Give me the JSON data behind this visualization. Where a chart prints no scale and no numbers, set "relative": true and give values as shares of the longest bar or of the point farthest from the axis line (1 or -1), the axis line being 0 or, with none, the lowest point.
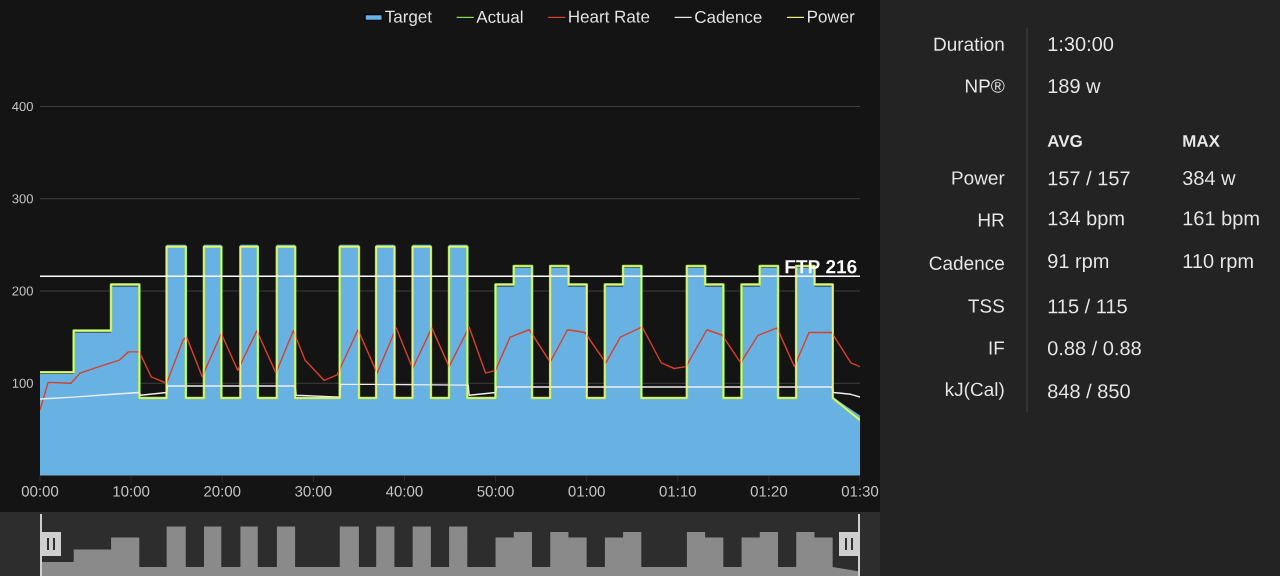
{
  "chart_data": [
    {
      "type": "line",
      "series": [
        {
          "name": "Target",
          "type": "area",
          "color": "#68b2e3",
          "x": [
            0,
            3.7,
            3.7,
            7.8,
            7.8,
            10.9,
            10.9,
            13.9,
            13.9,
            16,
            16,
            18,
            18,
            19.9,
            19.9,
            22,
            22,
            23.9,
            23.9,
            26,
            26,
            28,
            28,
            32.9,
            32.9,
            35,
            35,
            36.9,
            36.9,
            38.9,
            38.9,
            40.9,
            40.9,
            42.9,
            42.9,
            44.9,
            44.9,
            46.9,
            46.9,
            50,
            50,
            52,
            52,
            54,
            54,
            56,
            56,
            58,
            58,
            60,
            60,
            62,
            62,
            64,
            64,
            66,
            66,
            71,
            71,
            73,
            73,
            75,
            75,
            77,
            77,
            79,
            79,
            81,
            81,
            83,
            83,
            85,
            85,
            87,
            87,
            90
          ],
          "values": [
            110,
            110,
            155,
            155,
            205,
            205,
            85,
            85,
            250,
            250,
            85,
            85,
            250,
            250,
            85,
            85,
            250,
            250,
            85,
            85,
            250,
            250,
            85,
            85,
            250,
            250,
            85,
            85,
            250,
            250,
            85,
            85,
            250,
            250,
            85,
            85,
            250,
            250,
            85,
            85,
            205,
            205,
            225,
            225,
            85,
            85,
            225,
            225,
            205,
            205,
            85,
            85,
            205,
            205,
            225,
            225,
            85,
            85,
            225,
            225,
            205,
            205,
            85,
            85,
            205,
            205,
            225,
            225,
            85,
            85,
            225,
            225,
            205,
            205,
            85,
            65
          ]
        },
        {
          "name": "Actual",
          "color": "#8fdc5a",
          "x": [
            0,
            3.7,
            3.7,
            7.8,
            7.8,
            10.9,
            10.9,
            13.9,
            13.9,
            16,
            16,
            18,
            18,
            19.9,
            19.9,
            22,
            22,
            23.9,
            23.9,
            26,
            26,
            28,
            28,
            32.9,
            32.9,
            35,
            35,
            36.9,
            36.9,
            38.9,
            38.9,
            40.9,
            40.9,
            42.9,
            42.9,
            44.9,
            44.9,
            46.9,
            46.9,
            50,
            50,
            52,
            52,
            54,
            54,
            56,
            56,
            58,
            58,
            60,
            60,
            62,
            62,
            64,
            64,
            66,
            66,
            71,
            71,
            73,
            73,
            75,
            75,
            77,
            77,
            79,
            79,
            81,
            81,
            83,
            83,
            85,
            85,
            87,
            87,
            90
          ],
          "values": [
            112,
            112,
            157,
            157,
            207,
            207,
            84,
            84,
            248,
            248,
            84,
            84,
            248,
            248,
            84,
            84,
            248,
            248,
            84,
            84,
            248,
            248,
            84,
            84,
            248,
            248,
            84,
            84,
            248,
            248,
            84,
            84,
            248,
            248,
            84,
            84,
            248,
            248,
            84,
            84,
            207,
            207,
            227,
            227,
            84,
            84,
            227,
            227,
            207,
            207,
            84,
            84,
            207,
            207,
            227,
            227,
            84,
            84,
            227,
            227,
            207,
            207,
            84,
            84,
            207,
            207,
            227,
            227,
            84,
            84,
            227,
            227,
            207,
            207,
            84,
            60
          ]
        },
        {
          "name": "Heart Rate",
          "color": "#d8402c",
          "x": [
            0,
            0.9,
            3.4,
            4.4,
            6.5,
            8.7,
            9.7,
            10.9,
            12.2,
            13.9,
            15.7,
            16.1,
            17.8,
            19.9,
            21.7,
            23.8,
            25.9,
            27.8,
            29.1,
            31.2,
            32.6,
            34.9,
            37.0,
            39.1,
            40.9,
            43.0,
            44.9,
            47.1,
            48.9,
            50.0,
            51.6,
            53.7,
            56.0,
            57.9,
            59.8,
            62.1,
            63.7,
            66.1,
            68.2,
            69.6,
            70.9,
            73.2,
            74.9,
            76.9,
            78.8,
            80.9,
            82.8,
            84.4,
            86.9,
            89.0,
            90
          ],
          "values": [
            71,
            101,
            100,
            111,
            118,
            125,
            134,
            134,
            107,
            100,
            147,
            150,
            107,
            154,
            114,
            157,
            111,
            157,
            125,
            103,
            109,
            158,
            111,
            160,
            116,
            160,
            118,
            161,
            111,
            114,
            150,
            158,
            123,
            158,
            155,
            122,
            150,
            161,
            122,
            116,
            118,
            158,
            152,
            122,
            152,
            160,
            118,
            155,
            155,
            122,
            118
          ]
        },
        {
          "name": "Cadence",
          "color": "#eeeeee",
          "x": [
            0,
            3.7,
            8,
            10.9,
            11,
            13.9,
            14,
            28,
            28.1,
            32.9,
            33,
            47,
            47.1,
            50,
            50.1,
            86.9,
            87.1,
            89,
            90
          ],
          "values": [
            83,
            85,
            88,
            90,
            87,
            90,
            97,
            97,
            87,
            85,
            99,
            98,
            87,
            90,
            96,
            96,
            90,
            88,
            85
          ]
        },
        {
          "name": "Power",
          "color": "#e9f27e",
          "x": [
            0,
            3.7,
            3.7,
            7.8,
            7.8,
            10.9,
            10.9,
            13.9,
            13.9,
            16,
            16,
            18,
            18,
            19.9,
            19.9,
            22,
            22,
            23.9,
            23.9,
            26,
            26,
            28,
            28,
            32.9,
            32.9,
            35,
            35,
            36.9,
            36.9,
            38.9,
            38.9,
            40.9,
            40.9,
            42.9,
            42.9,
            44.9,
            44.9,
            46.9,
            46.9,
            50,
            50,
            52,
            52,
            54,
            54,
            56,
            56,
            58,
            58,
            60,
            60,
            62,
            62,
            64,
            64,
            66,
            66,
            71,
            71,
            73,
            73,
            75,
            75,
            77,
            77,
            79,
            79,
            81,
            81,
            83,
            83,
            85,
            85,
            87,
            87,
            90
          ],
          "values": [
            112,
            112,
            157,
            157,
            207,
            207,
            84,
            84,
            248,
            248,
            84,
            84,
            248,
            248,
            84,
            84,
            248,
            248,
            84,
            84,
            248,
            248,
            84,
            84,
            248,
            248,
            84,
            84,
            248,
            248,
            84,
            84,
            248,
            248,
            84,
            84,
            248,
            248,
            84,
            84,
            207,
            207,
            227,
            227,
            84,
            84,
            227,
            227,
            207,
            207,
            84,
            84,
            207,
            207,
            227,
            227,
            84,
            84,
            227,
            227,
            207,
            207,
            84,
            84,
            207,
            207,
            227,
            227,
            84,
            84,
            227,
            227,
            207,
            207,
            84,
            60
          ]
        }
      ],
      "xlim": [
        0,
        90
      ],
      "xticks": [
        {
          "value": 0,
          "label": "00:00"
        },
        {
          "value": 10,
          "label": "10:00"
        },
        {
          "value": 20,
          "label": "20:00"
        },
        {
          "value": 30,
          "label": "30:00"
        },
        {
          "value": 40,
          "label": "40:00"
        },
        {
          "value": 50,
          "label": "50:00"
        },
        {
          "value": 60,
          "label": "01:00"
        },
        {
          "value": 70,
          "label": "01:10"
        },
        {
          "value": 80,
          "label": "01:20"
        },
        {
          "value": 90,
          "label": "01:30"
        }
      ],
      "ylim": [
        0,
        400
      ],
      "yticks": [
        100,
        200,
        300,
        400
      ],
      "grid": "y",
      "legend": "top right",
      "ref_lines": [
        {
          "axis": "y",
          "value": 216,
          "label": "FTP 216",
          "color": "#ffffff"
        }
      ]
    },
    {
      "type": "other",
      "annotations": [
        "Duration",
        "1:30:00",
        "NP®",
        "189 w",
        "AVG",
        "MAX",
        "Power",
        "157 / 157",
        "384 w",
        "HR",
        "134 bpm",
        "161 bpm",
        "Cadence",
        "91 rpm",
        "110 rpm",
        "TSS",
        "115 / 115",
        "IF",
        "0.88 / 0.88",
        "kJ(Cal)",
        "848 / 850"
      ]
    },
    {
      "type": "area",
      "relative": true,
      "color": "#8a8a8a",
      "xlim": [
        0,
        90
      ],
      "x": [
        0,
        3.7,
        3.7,
        7.8,
        7.8,
        10.9,
        10.9,
        13.9,
        13.9,
        16,
        16,
        18,
        18,
        19.9,
        19.9,
        22,
        22,
        23.9,
        23.9,
        26,
        26,
        28,
        28,
        32.9,
        32.9,
        35,
        35,
        36.9,
        36.9,
        38.9,
        38.9,
        40.9,
        40.9,
        42.9,
        42.9,
        44.9,
        44.9,
        46.9,
        46.9,
        50,
        50,
        52,
        52,
        54,
        54,
        56,
        56,
        58,
        58,
        60,
        60,
        62,
        62,
        64,
        64,
        66,
        66,
        71,
        71,
        73,
        73,
        75,
        75,
        77,
        77,
        79,
        79,
        81,
        81,
        83,
        83,
        85,
        85,
        87,
        87,
        90
      ],
      "values": [
        0.29,
        0.29,
        0.54,
        0.54,
        0.78,
        0.78,
        0.19,
        0.19,
        1,
        1,
        0.19,
        0.19,
        1,
        1,
        0.19,
        0.19,
        1,
        1,
        0.19,
        0.19,
        1,
        1,
        0.19,
        0.19,
        1,
        1,
        0.19,
        0.19,
        1,
        1,
        0.19,
        0.19,
        1,
        1,
        0.19,
        0.19,
        1,
        1,
        0.19,
        0.19,
        0.78,
        0.78,
        0.89,
        0.89,
        0.19,
        0.19,
        0.89,
        0.89,
        0.78,
        0.78,
        0.19,
        0.19,
        0.78,
        0.78,
        0.89,
        0.89,
        0.19,
        0.19,
        0.89,
        0.89,
        0.78,
        0.78,
        0.19,
        0.19,
        0.78,
        0.78,
        0.89,
        0.89,
        0.19,
        0.19,
        0.89,
        0.89,
        0.78,
        0.78,
        0.19,
        0.1
      ]
    }
  ]
}
